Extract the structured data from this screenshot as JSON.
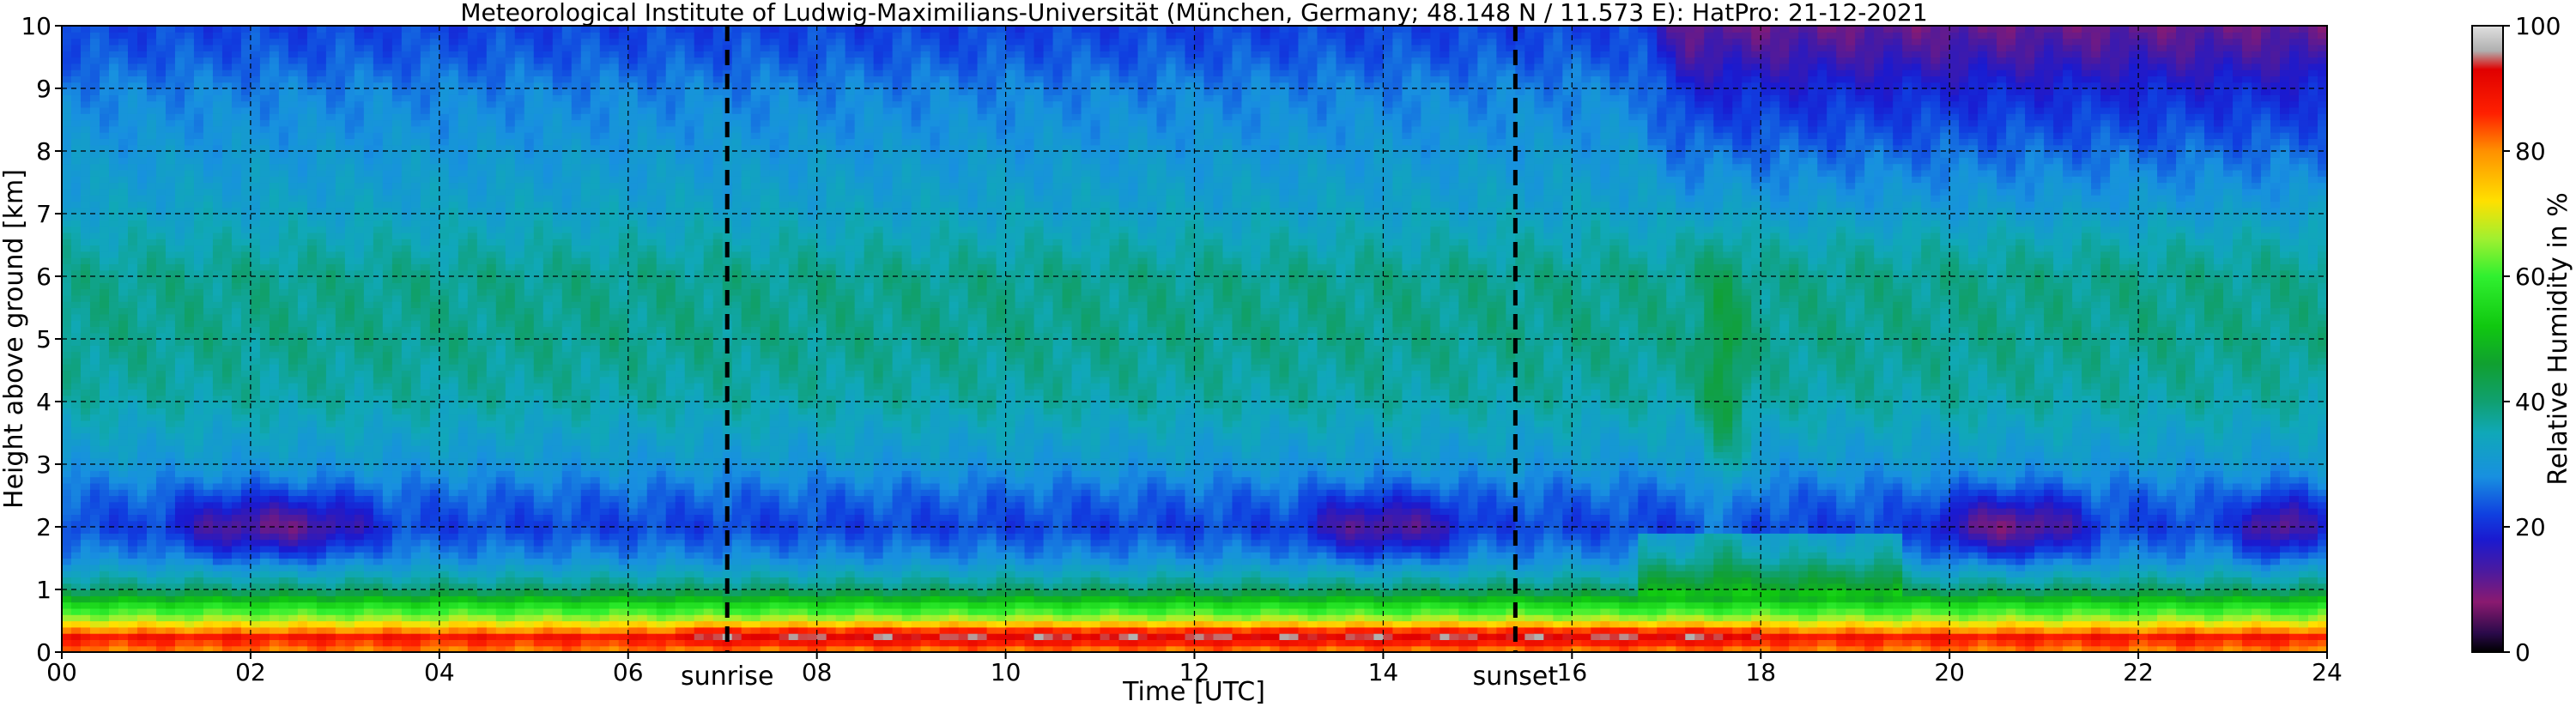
{
  "chart_data": {
    "type": "heatmap",
    "title": "Meteorological Institute of Ludwig-Maximilians-Universität (München, Germany; 48.148 N / 11.573 E):    HatPro: 21-12-2021",
    "xlabel": "Time [UTC]",
    "ylabel": "Height above ground [km]",
    "xlim": [
      0,
      24
    ],
    "ylim": [
      0,
      10
    ],
    "x_ticks": [
      "00",
      "02",
      "04",
      "06",
      "08",
      "10",
      "12",
      "14",
      "16",
      "18",
      "20",
      "22",
      "24"
    ],
    "y_ticks": [
      "0",
      "1",
      "2",
      "3",
      "4",
      "5",
      "6",
      "7",
      "8",
      "9",
      "10"
    ],
    "grid": true,
    "colorbar": {
      "label": "Relative Humidity in %",
      "range": [
        0,
        100
      ],
      "ticks": [
        "0",
        "20",
        "40",
        "60",
        "80",
        "100"
      ],
      "stops": [
        {
          "value": 0,
          "color": "#000000"
        },
        {
          "value": 3,
          "color": "#2a0a4a"
        },
        {
          "value": 8,
          "color": "#8a1a70"
        },
        {
          "value": 13,
          "color": "#4a1aa0"
        },
        {
          "value": 18,
          "color": "#1a1ad0"
        },
        {
          "value": 22,
          "color": "#1040e0"
        },
        {
          "value": 28,
          "color": "#1890e0"
        },
        {
          "value": 35,
          "color": "#10a8b8"
        },
        {
          "value": 40,
          "color": "#10a070"
        },
        {
          "value": 46,
          "color": "#10a030"
        },
        {
          "value": 52,
          "color": "#10c810"
        },
        {
          "value": 60,
          "color": "#30f030"
        },
        {
          "value": 66,
          "color": "#a0f030"
        },
        {
          "value": 72,
          "color": "#ffe000"
        },
        {
          "value": 80,
          "color": "#ff9000"
        },
        {
          "value": 86,
          "color": "#ff2000"
        },
        {
          "value": 93,
          "color": "#e00000"
        },
        {
          "value": 96,
          "color": "#b0b0b0"
        },
        {
          "value": 100,
          "color": "#e0e0e0"
        }
      ]
    },
    "vertical_markers": [
      {
        "label": "sunrise",
        "time": 7.05
      },
      {
        "label": "sunset",
        "time": 15.4
      }
    ],
    "humidity_profile": {
      "heights_km": [
        0,
        0.25,
        0.5,
        0.75,
        1.0,
        1.5,
        2.0,
        2.5,
        3.0,
        4.0,
        5.0,
        6.0,
        7.0,
        8.0,
        9.0,
        9.5,
        10
      ],
      "typical_rh": [
        80,
        88,
        68,
        56,
        40,
        28,
        22,
        25,
        30,
        36,
        38,
        38,
        33,
        30,
        27,
        24,
        22
      ]
    },
    "dry_layers_2km": [
      {
        "t_start": 1.0,
        "t_end": 3.5,
        "min_rh": 17
      },
      {
        "t_start": 13.0,
        "t_end": 15.0,
        "min_rh": 18
      },
      {
        "t_start": 19.7,
        "t_end": 21.6,
        "min_rh": 16
      },
      {
        "t_start": 23.0,
        "t_end": 24.0,
        "min_rh": 17
      }
    ],
    "dry_upper_period": {
      "t_start": 16.7,
      "t_end": 24.0
    }
  }
}
